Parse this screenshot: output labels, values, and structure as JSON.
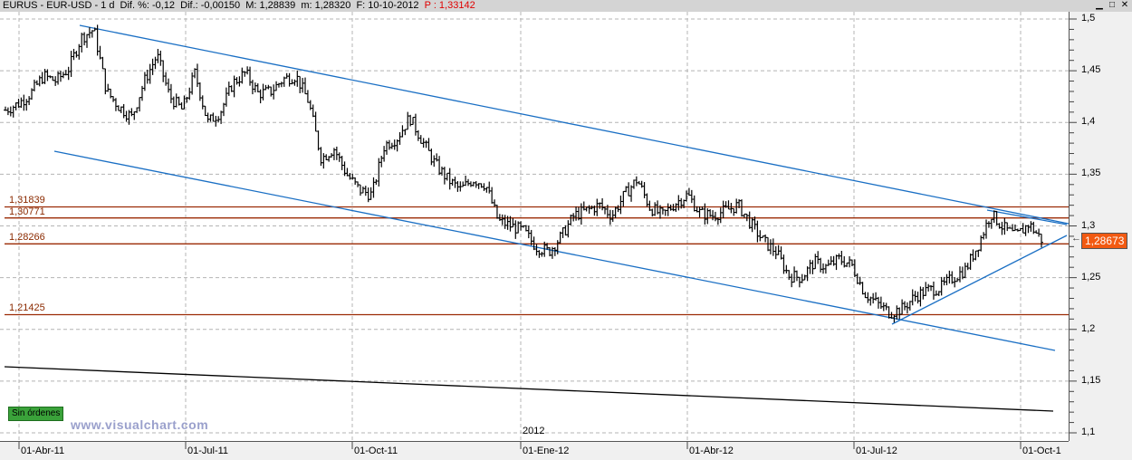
{
  "titlebar": {
    "symbol": "EURUS - EUR-USD - 1 d",
    "dif_pct": "Dif. %: -0,12",
    "dif": "Dif.: -0,00150",
    "max": "M: 1,28839",
    "min": "m: 1,28320",
    "date": "F: 10-10-2012",
    "price": "P : 1,33142",
    "controls": [
      "minimize-icon",
      "maximize-icon",
      "close-icon"
    ]
  },
  "badges": {
    "orders": "Sin órdenes",
    "watermark": "www.visualchart.com",
    "last_price": "1,28673",
    "year_marker": "2012"
  },
  "colors": {
    "bars": "#000000",
    "trendline": "#1a6fc4",
    "level": "#9b2b05",
    "grid": "#b4b4b4",
    "badge": "#f25a12",
    "orders_badge": "#3aa23a"
  },
  "chart_data": {
    "type": "ohlc",
    "title": "EURUS - EUR-USD - 1 d",
    "xlabel": "",
    "ylabel": "",
    "ylim": [
      1.1,
      1.5
    ],
    "y_ticks": [
      "1,5",
      "1,45",
      "1,4",
      "1,35",
      "1,3",
      "1,25",
      "1,2",
      "1,15",
      "1,1"
    ],
    "x_ticks": [
      "01-Abr-11",
      "01-Jul-11",
      "01-Oct-11",
      "01-Ene-12",
      "01-Abr-12",
      "01-Jul-12",
      "01-Oct-1"
    ],
    "grid": true,
    "horizontal_levels": [
      {
        "label": "1,31839",
        "value": 1.31839
      },
      {
        "label": "1,30771",
        "value": 1.30771
      },
      {
        "label": "1,28266",
        "value": 1.28266
      },
      {
        "label": "1,21425",
        "value": 1.21425
      }
    ],
    "trendlines": [
      {
        "name": "upper-channel",
        "from": [
          "Apr-2011",
          1.493
        ],
        "to": [
          "Oct-2012",
          1.305
        ]
      },
      {
        "name": "lower-channel",
        "from": [
          "Apr-2011",
          1.372
        ],
        "to": [
          "Oct-2012",
          1.18
        ]
      },
      {
        "name": "rising-support",
        "from": [
          "Jul-2012",
          1.203
        ],
        "to": [
          "Oct-2012",
          1.295
        ]
      },
      {
        "name": "long-term-black",
        "from": [
          "Mar-2011",
          1.165
        ],
        "to": [
          "Oct-2012",
          1.122
        ]
      }
    ],
    "series": [
      {
        "name": "EUR-USD daily (approx. closes, weekly sampling)",
        "x": [
          "2011-03-18",
          "2011-03-25",
          "2011-04-01",
          "2011-04-08",
          "2011-04-15",
          "2011-04-22",
          "2011-04-29",
          "2011-05-06",
          "2011-05-13",
          "2011-05-20",
          "2011-05-27",
          "2011-06-03",
          "2011-06-10",
          "2011-06-17",
          "2011-06-24",
          "2011-07-01",
          "2011-07-08",
          "2011-07-15",
          "2011-07-22",
          "2011-07-29",
          "2011-08-05",
          "2011-08-12",
          "2011-08-19",
          "2011-08-26",
          "2011-09-02",
          "2011-09-09",
          "2011-09-16",
          "2011-09-23",
          "2011-09-30",
          "2011-10-07",
          "2011-10-14",
          "2011-10-21",
          "2011-10-28",
          "2011-11-04",
          "2011-11-11",
          "2011-11-18",
          "2011-11-25",
          "2011-12-02",
          "2011-12-09",
          "2011-12-16",
          "2011-12-23",
          "2011-12-30",
          "2012-01-06",
          "2012-01-13",
          "2012-01-20",
          "2012-01-27",
          "2012-02-03",
          "2012-02-10",
          "2012-02-17",
          "2012-02-24",
          "2012-03-02",
          "2012-03-09",
          "2012-03-16",
          "2012-03-23",
          "2012-03-30",
          "2012-04-06",
          "2012-04-13",
          "2012-04-20",
          "2012-04-27",
          "2012-05-04",
          "2012-05-11",
          "2012-05-18",
          "2012-05-25",
          "2012-06-01",
          "2012-06-08",
          "2012-06-15",
          "2012-06-22",
          "2012-06-29",
          "2012-07-06",
          "2012-07-13",
          "2012-07-20",
          "2012-07-27",
          "2012-08-03",
          "2012-08-10",
          "2012-08-17",
          "2012-08-24",
          "2012-08-31",
          "2012-09-07",
          "2012-09-14",
          "2012-09-21",
          "2012-09-28",
          "2012-10-05",
          "2012-10-10"
        ],
        "values": [
          1.412,
          1.418,
          1.428,
          1.445,
          1.44,
          1.452,
          1.482,
          1.49,
          1.43,
          1.415,
          1.405,
          1.44,
          1.465,
          1.425,
          1.412,
          1.448,
          1.4,
          1.41,
          1.438,
          1.448,
          1.428,
          1.43,
          1.442,
          1.445,
          1.42,
          1.365,
          1.375,
          1.35,
          1.335,
          1.33,
          1.378,
          1.385,
          1.405,
          1.382,
          1.36,
          1.345,
          1.335,
          1.345,
          1.34,
          1.305,
          1.3,
          1.295,
          1.28,
          1.275,
          1.29,
          1.31,
          1.315,
          1.32,
          1.31,
          1.33,
          1.345,
          1.318,
          1.31,
          1.322,
          1.33,
          1.312,
          1.31,
          1.315,
          1.32,
          1.302,
          1.285,
          1.275,
          1.252,
          1.25,
          1.265,
          1.26,
          1.268,
          1.262,
          1.235,
          1.225,
          1.216,
          1.22,
          1.232,
          1.238,
          1.24,
          1.25,
          1.258,
          1.282,
          1.312,
          1.298,
          1.29,
          1.302,
          1.287
        ]
      }
    ]
  }
}
